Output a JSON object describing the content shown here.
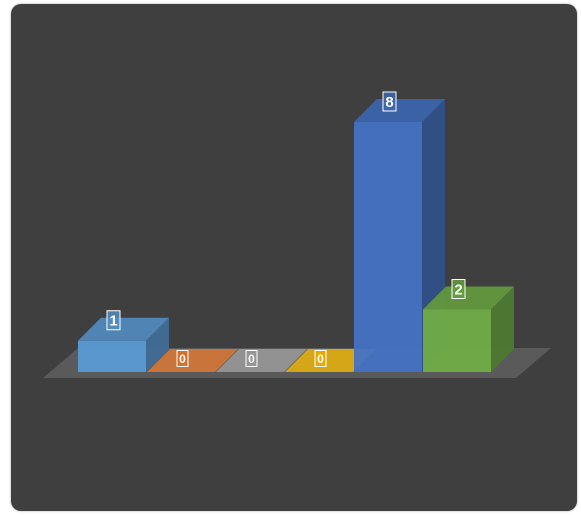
{
  "chart_data": {
    "type": "bar",
    "variant": "3d-column",
    "categories": [
      "",
      "",
      "",
      "",
      "",
      ""
    ],
    "values": [
      1,
      0,
      0,
      0,
      8,
      2
    ],
    "data_labels": [
      "1",
      "0",
      "0",
      "0",
      "8",
      "2"
    ],
    "colors": [
      "#5b9bd5",
      "#ed7d31",
      "#a5a5a5",
      "#ffc000",
      "#4472c4",
      "#70ad47"
    ],
    "title": "",
    "xlabel": "",
    "ylabel": "",
    "ylim": [
      0,
      8
    ],
    "grid": false,
    "legend": "none",
    "background": "#3f3f3f"
  }
}
